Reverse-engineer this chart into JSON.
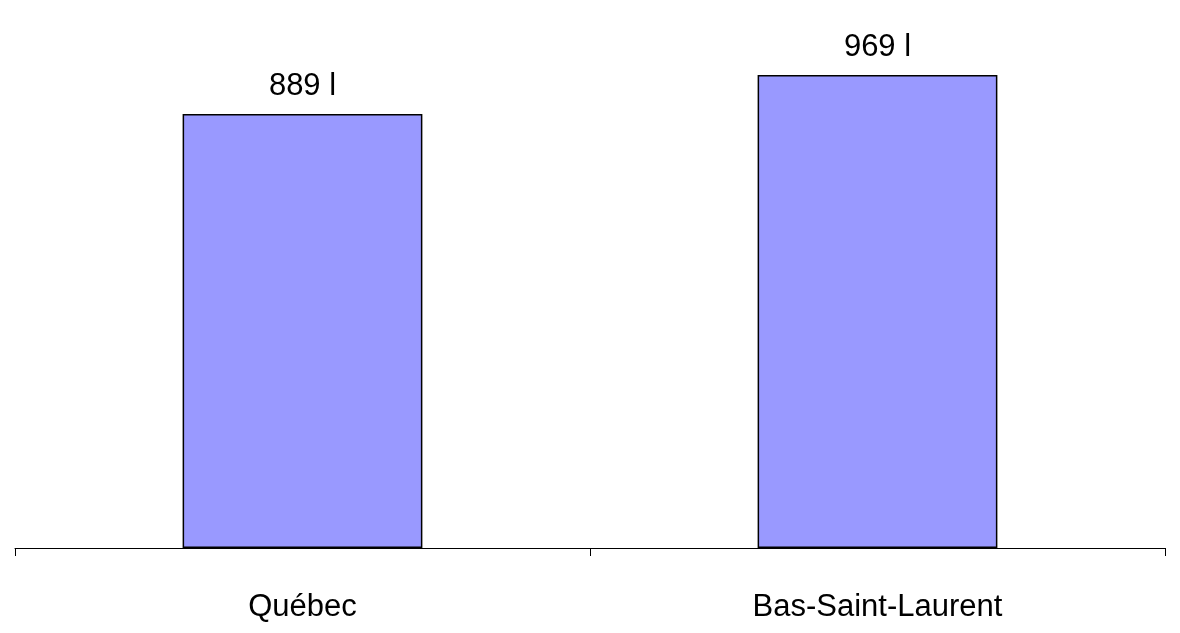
{
  "chart_data": {
    "type": "bar",
    "categories": [
      "Québec",
      "Bas-Saint-Laurent"
    ],
    "values": [
      889,
      969
    ],
    "value_labels": [
      "889 l",
      "969 l"
    ],
    "color": "#9999ff"
  }
}
